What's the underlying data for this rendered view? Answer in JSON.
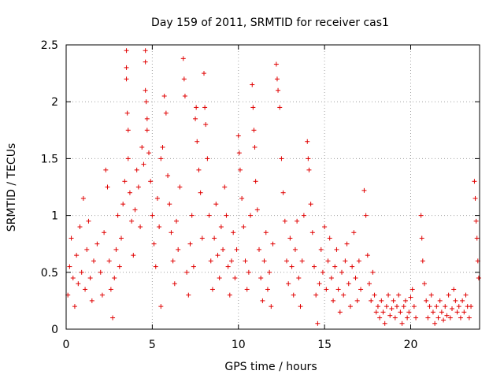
{
  "chart_data": {
    "type": "scatter",
    "title": "Day 159 of 2011, SRMTID for receiver cas1",
    "xlabel": "GPS time / hours",
    "ylabel": "SRMTID / TECUs",
    "xlim": [
      0,
      24
    ],
    "ylim": [
      0,
      2.5
    ],
    "xticks": [
      0,
      5,
      10,
      15,
      20
    ],
    "xtick_labels": [
      "0",
      "5",
      "10",
      "15",
      "20"
    ],
    "yticks": [
      0,
      0.5,
      1,
      1.5,
      2,
      2.5
    ],
    "ytick_labels": [
      "0",
      "0.5",
      "1",
      "1.5",
      "2",
      "2.5"
    ],
    "grid": true,
    "marker": "+",
    "marker_color": "#e00000",
    "series": [
      {
        "name": "SRMTID",
        "points": [
          [
            0.1,
            0.3
          ],
          [
            0.2,
            0.55
          ],
          [
            0.3,
            0.8
          ],
          [
            0.4,
            0.45
          ],
          [
            0.5,
            0.2
          ],
          [
            0.6,
            0.65
          ],
          [
            0.7,
            0.4
          ],
          [
            0.8,
            0.9
          ],
          [
            0.9,
            0.5
          ],
          [
            1.0,
            1.15
          ],
          [
            1.1,
            0.35
          ],
          [
            1.2,
            0.7
          ],
          [
            1.3,
            0.95
          ],
          [
            1.4,
            0.45
          ],
          [
            1.5,
            0.25
          ],
          [
            1.6,
            0.6
          ],
          [
            1.8,
            0.75
          ],
          [
            2.0,
            0.5
          ],
          [
            2.1,
            0.3
          ],
          [
            2.2,
            0.85
          ],
          [
            2.3,
            1.4
          ],
          [
            2.4,
            1.25
          ],
          [
            2.5,
            0.6
          ],
          [
            2.6,
            0.35
          ],
          [
            2.7,
            0.1
          ],
          [
            2.8,
            0.45
          ],
          [
            2.9,
            0.7
          ],
          [
            3.0,
            1.0
          ],
          [
            3.1,
            0.55
          ],
          [
            3.2,
            0.8
          ],
          [
            3.3,
            1.1
          ],
          [
            3.4,
            1.3
          ],
          [
            3.5,
            2.45
          ],
          [
            3.5,
            2.3
          ],
          [
            3.5,
            2.2
          ],
          [
            3.55,
            1.9
          ],
          [
            3.6,
            1.75
          ],
          [
            3.6,
            1.5
          ],
          [
            3.7,
            1.2
          ],
          [
            3.8,
            0.95
          ],
          [
            3.9,
            0.65
          ],
          [
            4.0,
            1.05
          ],
          [
            4.1,
            1.4
          ],
          [
            4.2,
            1.25
          ],
          [
            4.3,
            0.9
          ],
          [
            4.4,
            1.6
          ],
          [
            4.5,
            1.45
          ],
          [
            4.6,
            2.45
          ],
          [
            4.6,
            2.35
          ],
          [
            4.6,
            2.1
          ],
          [
            4.65,
            2.0
          ],
          [
            4.7,
            1.85
          ],
          [
            4.7,
            1.75
          ],
          [
            4.8,
            1.55
          ],
          [
            4.9,
            1.3
          ],
          [
            5.0,
            1.0
          ],
          [
            5.1,
            0.75
          ],
          [
            5.2,
            0.55
          ],
          [
            5.3,
            1.15
          ],
          [
            5.4,
            0.9
          ],
          [
            5.5,
            0.2
          ],
          [
            5.5,
            1.5
          ],
          [
            5.6,
            1.6
          ],
          [
            5.7,
            2.05
          ],
          [
            5.8,
            1.9
          ],
          [
            5.9,
            1.35
          ],
          [
            6.0,
            1.1
          ],
          [
            6.1,
            0.85
          ],
          [
            6.2,
            0.6
          ],
          [
            6.3,
            0.4
          ],
          [
            6.4,
            0.95
          ],
          [
            6.5,
            0.7
          ],
          [
            6.6,
            1.25
          ],
          [
            6.8,
            2.38
          ],
          [
            6.85,
            2.2
          ],
          [
            6.9,
            2.05
          ],
          [
            7.0,
            0.5
          ],
          [
            7.1,
            0.3
          ],
          [
            7.2,
            0.75
          ],
          [
            7.3,
            1.0
          ],
          [
            7.4,
            0.55
          ],
          [
            7.5,
            1.85
          ],
          [
            7.55,
            1.95
          ],
          [
            7.6,
            1.65
          ],
          [
            7.7,
            1.4
          ],
          [
            7.8,
            1.2
          ],
          [
            7.9,
            0.8
          ],
          [
            8.0,
            2.25
          ],
          [
            8.05,
            1.95
          ],
          [
            8.1,
            1.8
          ],
          [
            8.2,
            1.5
          ],
          [
            8.3,
            1.0
          ],
          [
            8.4,
            0.6
          ],
          [
            8.5,
            0.35
          ],
          [
            8.6,
            0.8
          ],
          [
            8.7,
            1.1
          ],
          [
            8.8,
            0.65
          ],
          [
            8.9,
            0.45
          ],
          [
            9.0,
            0.9
          ],
          [
            9.1,
            0.7
          ],
          [
            9.2,
            1.25
          ],
          [
            9.3,
            1.0
          ],
          [
            9.4,
            0.55
          ],
          [
            9.5,
            0.3
          ],
          [
            9.6,
            0.6
          ],
          [
            9.7,
            0.85
          ],
          [
            9.8,
            0.45
          ],
          [
            9.9,
            0.7
          ],
          [
            10.0,
            1.7
          ],
          [
            10.05,
            1.55
          ],
          [
            10.1,
            1.4
          ],
          [
            10.2,
            1.15
          ],
          [
            10.3,
            0.9
          ],
          [
            10.4,
            0.6
          ],
          [
            10.5,
            0.35
          ],
          [
            10.6,
            0.5
          ],
          [
            10.7,
            1.0
          ],
          [
            10.8,
            2.15
          ],
          [
            10.85,
            1.95
          ],
          [
            10.9,
            1.75
          ],
          [
            10.95,
            1.6
          ],
          [
            11.0,
            1.3
          ],
          [
            11.1,
            1.05
          ],
          [
            11.2,
            0.7
          ],
          [
            11.3,
            0.45
          ],
          [
            11.4,
            0.25
          ],
          [
            11.5,
            0.6
          ],
          [
            11.6,
            0.85
          ],
          [
            11.7,
            0.35
          ],
          [
            11.8,
            0.5
          ],
          [
            11.9,
            0.2
          ],
          [
            12.0,
            0.75
          ],
          [
            12.2,
            2.33
          ],
          [
            12.25,
            2.2
          ],
          [
            12.3,
            2.1
          ],
          [
            12.4,
            1.95
          ],
          [
            12.5,
            1.5
          ],
          [
            12.6,
            1.2
          ],
          [
            12.7,
            0.95
          ],
          [
            12.8,
            0.6
          ],
          [
            12.9,
            0.4
          ],
          [
            13.0,
            0.8
          ],
          [
            13.1,
            0.55
          ],
          [
            13.2,
            0.3
          ],
          [
            13.3,
            0.7
          ],
          [
            13.4,
            0.95
          ],
          [
            13.5,
            0.45
          ],
          [
            13.6,
            0.2
          ],
          [
            13.7,
            0.6
          ],
          [
            13.8,
            1.0
          ],
          [
            14.0,
            1.65
          ],
          [
            14.05,
            1.5
          ],
          [
            14.1,
            1.4
          ],
          [
            14.2,
            1.1
          ],
          [
            14.3,
            0.85
          ],
          [
            14.4,
            0.55
          ],
          [
            14.5,
            0.3
          ],
          [
            14.6,
            0.05
          ],
          [
            14.7,
            0.4
          ],
          [
            14.8,
            0.7
          ],
          [
            14.9,
            0.5
          ],
          [
            15.0,
            0.9
          ],
          [
            15.1,
            0.35
          ],
          [
            15.2,
            0.6
          ],
          [
            15.3,
            0.8
          ],
          [
            15.4,
            0.45
          ],
          [
            15.5,
            0.25
          ],
          [
            15.6,
            0.55
          ],
          [
            15.7,
            0.7
          ],
          [
            15.8,
            0.35
          ],
          [
            15.9,
            0.15
          ],
          [
            16.0,
            0.5
          ],
          [
            16.1,
            0.3
          ],
          [
            16.2,
            0.6
          ],
          [
            16.3,
            0.75
          ],
          [
            16.4,
            0.4
          ],
          [
            16.5,
            0.2
          ],
          [
            16.6,
            0.55
          ],
          [
            16.7,
            0.85
          ],
          [
            16.8,
            0.45
          ],
          [
            16.9,
            0.25
          ],
          [
            17.0,
            0.6
          ],
          [
            17.1,
            0.35
          ],
          [
            17.3,
            1.22
          ],
          [
            17.4,
            1.0
          ],
          [
            17.5,
            0.65
          ],
          [
            17.6,
            0.4
          ],
          [
            17.7,
            0.25
          ],
          [
            17.8,
            0.5
          ],
          [
            17.9,
            0.3
          ],
          [
            18.0,
            0.15
          ],
          [
            18.1,
            0.2
          ],
          [
            18.2,
            0.1
          ],
          [
            18.3,
            0.25
          ],
          [
            18.4,
            0.15
          ],
          [
            18.5,
            0.05
          ],
          [
            18.6,
            0.2
          ],
          [
            18.7,
            0.3
          ],
          [
            18.8,
            0.12
          ],
          [
            18.9,
            0.18
          ],
          [
            19.0,
            0.25
          ],
          [
            19.1,
            0.1
          ],
          [
            19.2,
            0.2
          ],
          [
            19.3,
            0.3
          ],
          [
            19.4,
            0.15
          ],
          [
            19.5,
            0.05
          ],
          [
            19.6,
            0.2
          ],
          [
            19.7,
            0.25
          ],
          [
            19.8,
            0.1
          ],
          [
            19.9,
            0.15
          ],
          [
            20.0,
            0.28
          ],
          [
            20.1,
            0.35
          ],
          [
            20.2,
            0.2
          ],
          [
            20.3,
            0.1
          ],
          [
            20.6,
            1.0
          ],
          [
            20.65,
            0.8
          ],
          [
            20.7,
            0.6
          ],
          [
            20.8,
            0.4
          ],
          [
            20.9,
            0.25
          ],
          [
            21.0,
            0.1
          ],
          [
            21.1,
            0.2
          ],
          [
            21.2,
            0.3
          ],
          [
            21.3,
            0.15
          ],
          [
            21.4,
            0.05
          ],
          [
            21.5,
            0.2
          ],
          [
            21.6,
            0.1
          ],
          [
            21.7,
            0.25
          ],
          [
            21.8,
            0.15
          ],
          [
            21.9,
            0.08
          ],
          [
            22.0,
            0.2
          ],
          [
            22.1,
            0.12
          ],
          [
            22.2,
            0.3
          ],
          [
            22.3,
            0.1
          ],
          [
            22.4,
            0.18
          ],
          [
            22.5,
            0.35
          ],
          [
            22.6,
            0.25
          ],
          [
            22.7,
            0.15
          ],
          [
            22.8,
            0.2
          ],
          [
            22.9,
            0.1
          ],
          [
            23.0,
            0.25
          ],
          [
            23.1,
            0.15
          ],
          [
            23.2,
            0.3
          ],
          [
            23.3,
            0.2
          ],
          [
            23.4,
            0.1
          ],
          [
            23.5,
            0.2
          ],
          [
            23.7,
            1.3
          ],
          [
            23.75,
            1.15
          ],
          [
            23.8,
            0.95
          ],
          [
            23.85,
            0.8
          ],
          [
            23.9,
            0.6
          ],
          [
            23.95,
            0.45
          ]
        ]
      }
    ]
  }
}
